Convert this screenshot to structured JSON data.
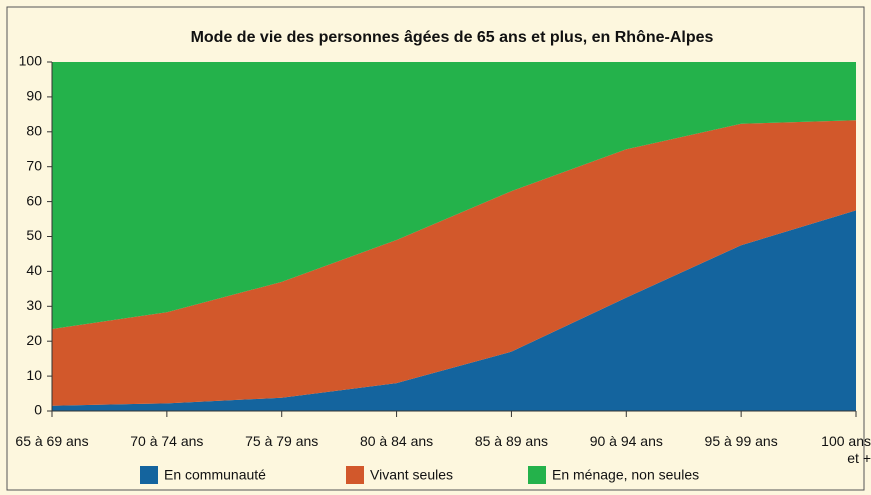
{
  "chart_data": {
    "type": "stacked_area",
    "title": "Mode de vie des personnes âgées de 65 ans et plus, en Rhône-Alpes",
    "categories": [
      "65 à 69 ans",
      "70 à 74 ans",
      "75 à 79 ans",
      "80 à 84 ans",
      "85 à 89 ans",
      "90 à 94 ans",
      "95 à 99 ans",
      "100 ans et +"
    ],
    "series": [
      {
        "name": "En communauté",
        "color": "#14649e",
        "values": [
          1.5,
          2.2,
          3.8,
          8,
          17,
          32.5,
          47.5,
          57.5
        ]
      },
      {
        "name": "Vivant seules",
        "color": "#d2582b",
        "values": [
          22,
          26.1,
          33.2,
          41,
          46,
          42.5,
          34.8,
          25.8
        ]
      },
      {
        "name": "En ménage, non seules",
        "color": "#24b24b",
        "values": [
          76.5,
          71.7,
          63,
          51,
          37,
          25,
          17.7,
          16.7
        ]
      }
    ],
    "ylim": [
      0,
      100
    ],
    "yticks": [
      0,
      10,
      20,
      30,
      40,
      50,
      60,
      70,
      80,
      90,
      100
    ]
  }
}
